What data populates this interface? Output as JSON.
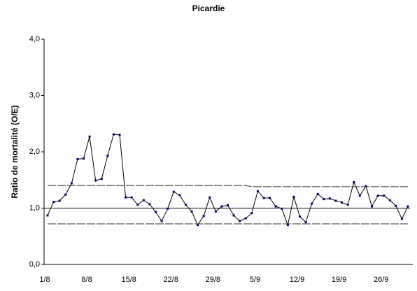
{
  "chart_data": {
    "type": "line",
    "title": "Picardie",
    "y_label": "Ratio de mortalité (O/E)",
    "categories": [
      "1/8",
      null,
      null,
      null,
      null,
      null,
      null,
      "8/8",
      null,
      null,
      null,
      null,
      null,
      null,
      "15/8",
      null,
      null,
      null,
      null,
      null,
      null,
      "22/8",
      null,
      null,
      null,
      null,
      null,
      null,
      "29/8",
      null,
      null,
      null,
      null,
      null,
      null,
      "5/9",
      null,
      null,
      null,
      null,
      null,
      null,
      "12/9",
      null,
      null,
      null,
      null,
      null,
      null,
      "19/9",
      null,
      null,
      null,
      null,
      null,
      null,
      "26/9",
      null,
      null,
      null,
      null
    ],
    "series": [
      {
        "color": "#000000",
        "marker_color": "#000066",
        "markers": true,
        "dashed": false,
        "values": [
          0.87,
          1.11,
          1.13,
          1.24,
          1.44,
          1.87,
          1.88,
          2.27,
          1.49,
          1.52,
          1.93,
          2.31,
          2.3,
          1.19,
          1.19,
          1.06,
          1.14,
          1.07,
          0.93,
          0.77,
          0.99,
          1.29,
          1.23,
          1.06,
          0.94,
          0.7,
          0.86,
          1.19,
          0.94,
          1.03,
          1.05,
          0.87,
          0.77,
          0.82,
          0.91,
          1.3,
          1.18,
          1.18,
          1.03,
          0.99,
          0.7,
          1.2,
          0.85,
          0.75,
          1.08,
          1.25,
          1.16,
          1.17,
          1.13,
          1.1,
          1.06,
          1.46,
          1.22,
          1.39,
          1.03,
          1.22,
          1.22,
          1.14,
          1.04,
          0.81,
          1.03
        ]
      },
      {
        "color": "#333333",
        "markers": false,
        "dashed": true,
        "values": [
          1.4,
          1.4,
          1.4,
          1.4,
          1.4,
          1.4,
          1.4,
          1.4,
          1.4,
          1.4,
          1.4,
          1.4,
          1.4,
          1.4,
          1.4,
          1.4,
          1.4,
          1.4,
          1.4,
          1.4,
          1.4,
          1.4,
          1.4,
          1.4,
          1.4,
          1.4,
          1.4,
          1.4,
          1.4,
          1.4,
          1.4,
          1.4,
          1.4,
          1.4,
          1.38,
          1.38,
          1.38,
          1.38,
          1.38,
          1.38,
          1.38,
          1.38,
          1.38,
          1.38,
          1.38,
          1.38,
          1.38,
          1.38,
          1.38,
          1.38,
          1.38,
          1.38,
          1.38,
          1.38,
          1.38,
          1.38,
          1.38,
          1.38,
          1.38,
          1.38,
          1.38
        ]
      },
      {
        "color": "#333333",
        "markers": false,
        "dashed": true,
        "values": [
          0.72,
          0.72,
          0.72,
          0.72,
          0.72,
          0.72,
          0.72,
          0.72,
          0.72,
          0.72,
          0.72,
          0.72,
          0.72,
          0.72,
          0.72,
          0.72,
          0.72,
          0.72,
          0.72,
          0.72,
          0.72,
          0.72,
          0.72,
          0.72,
          0.72,
          0.72,
          0.72,
          0.72,
          0.72,
          0.72,
          0.72,
          0.72,
          0.72,
          0.72,
          0.72,
          0.72,
          0.72,
          0.72,
          0.72,
          0.72,
          0.72,
          0.72,
          0.72,
          0.72,
          0.72,
          0.72,
          0.72,
          0.72,
          0.72,
          0.72,
          0.72,
          0.72,
          0.72,
          0.72,
          0.72,
          0.72,
          0.72,
          0.72,
          0.72,
          0.72,
          0.72
        ]
      }
    ],
    "reference_line": 1,
    "ylim": [
      0,
      4
    ],
    "yticks": [
      {
        "value": 0,
        "label": "0,0"
      },
      {
        "value": 1,
        "label": "1,0"
      },
      {
        "value": 2,
        "label": "2,0"
      },
      {
        "value": 3,
        "label": "3,0"
      },
      {
        "value": 4,
        "label": "4,0"
      }
    ],
    "grid": false
  }
}
